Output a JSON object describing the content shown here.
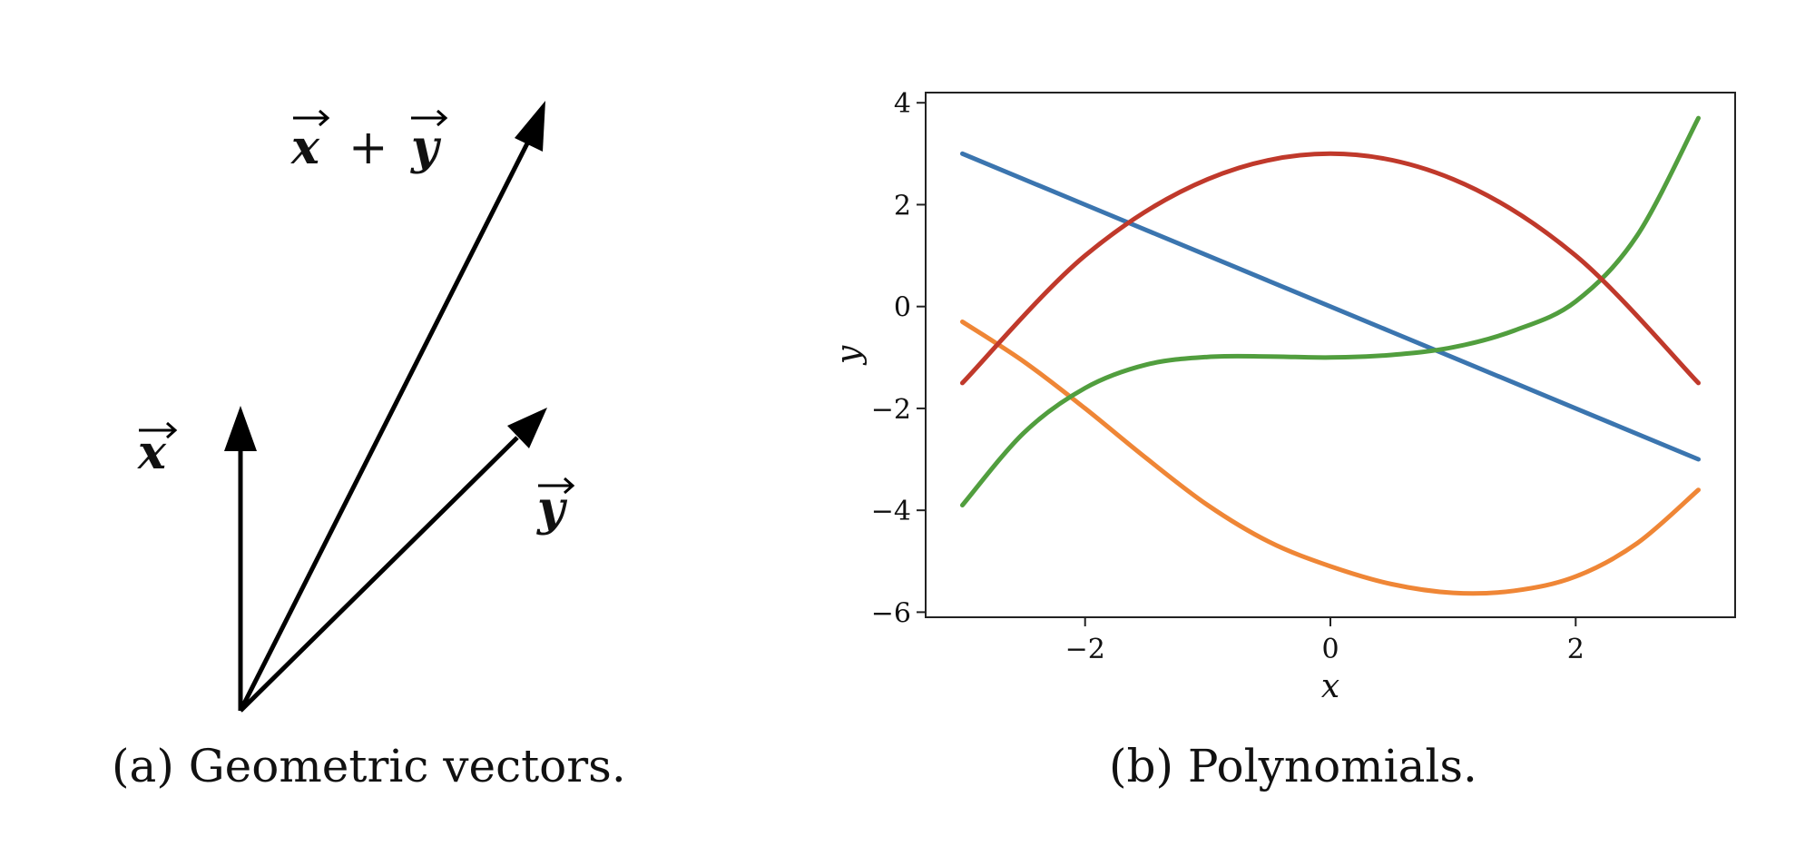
{
  "panel_a": {
    "caption": "(a) Geometric vectors.",
    "vector_labels": {
      "x": "x",
      "y": "y",
      "x_plus_y_x": "x",
      "plus": "+",
      "x_plus_y_y": "y"
    }
  },
  "panel_b": {
    "caption": "(b) Polynomials."
  },
  "chart_data": {
    "type": "line",
    "xlabel": "x",
    "ylabel": "y",
    "xlim": [
      -3.3,
      3.3
    ],
    "ylim": [
      -6.1,
      4.2
    ],
    "xticks": [
      -2,
      0,
      2
    ],
    "xtick_labels": [
      "−2",
      "0",
      "2"
    ],
    "yticks": [
      -6,
      -4,
      -2,
      0,
      2,
      4
    ],
    "ytick_labels": [
      "−6",
      "−4",
      "−2",
      "0",
      "2",
      "4"
    ],
    "grid": false,
    "series": [
      {
        "color": "#3b75af",
        "x": [
          -3,
          -2,
          -1,
          0,
          1,
          2,
          3
        ],
        "y": [
          3,
          2,
          1,
          0,
          -1,
          -2,
          -3
        ]
      },
      {
        "color": "#c0392b",
        "x": [
          -3,
          -2,
          -1,
          0,
          1,
          2,
          3
        ],
        "y": [
          -1.5,
          1,
          2.5,
          3,
          2.5,
          1,
          -1.5
        ]
      },
      {
        "color": "#519e3e",
        "x": [
          -3,
          -2.5,
          -2,
          -1.5,
          -1,
          -0.5,
          0,
          0.5,
          1,
          1.5,
          2,
          2.5,
          3
        ],
        "y": [
          -3.9,
          -2.48,
          -1.6,
          -1.14,
          -0.99,
          -0.98,
          -1.0,
          -0.95,
          -0.8,
          -0.47,
          0.1,
          1.39,
          3.7
        ]
      },
      {
        "color": "#ef8636",
        "x": [
          -3,
          -2.5,
          -2,
          -1.5,
          -1,
          -0.5,
          0,
          0.5,
          1,
          1.5,
          2,
          2.5,
          3
        ],
        "y": [
          -0.3,
          -1.08,
          -2.0,
          -2.98,
          -3.9,
          -4.62,
          -5.1,
          -5.45,
          -5.62,
          -5.58,
          -5.3,
          -4.65,
          -3.6
        ]
      }
    ]
  }
}
